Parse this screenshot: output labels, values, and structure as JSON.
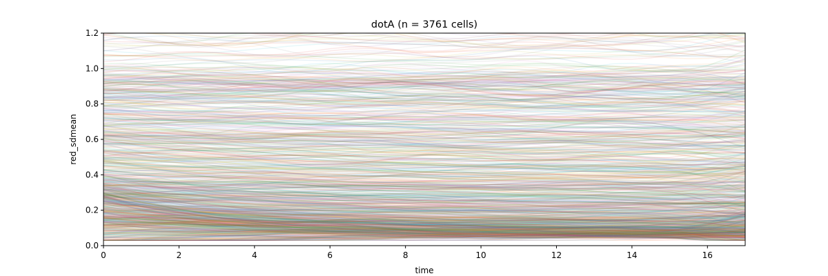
{
  "chart_data": {
    "type": "line",
    "title": "dotA (n = 3761 cells)",
    "xlabel": "time",
    "ylabel": "red_sdmean",
    "xlim": [
      0,
      17
    ],
    "ylim": [
      0,
      1.2
    ],
    "xticks": [
      0,
      2,
      4,
      6,
      8,
      10,
      12,
      14,
      16
    ],
    "yticks": [
      0.0,
      0.2,
      0.4,
      0.6,
      0.8,
      1.0,
      1.2
    ],
    "xtick_labels": [
      "0",
      "2",
      "4",
      "6",
      "8",
      "10",
      "12",
      "14",
      "16"
    ],
    "ytick_labels": [
      "0.0",
      "0.2",
      "0.4",
      "0.6",
      "0.8",
      "1.0",
      "1.2"
    ],
    "n_series": 3761,
    "series_alpha": 0.1,
    "grid": false,
    "legend": "none",
    "colors": [
      "#1f77b4",
      "#ff7f0e",
      "#2ca02c",
      "#d62728",
      "#9467bd",
      "#8c564b",
      "#e377c2",
      "#7f7f7f",
      "#bcbd22",
      "#17becf"
    ]
  }
}
